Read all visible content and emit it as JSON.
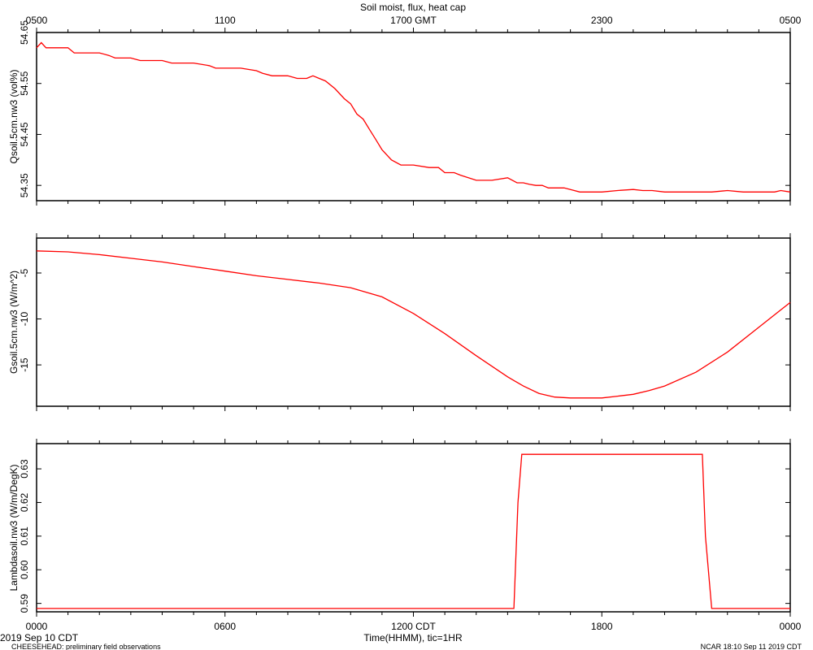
{
  "title": "Soil moist, flux, heat cap",
  "top_axis": {
    "ticks": [
      "0500",
      "1100",
      "1700 GMT",
      "2300",
      "0500"
    ],
    "tick_hours": [
      0,
      6,
      12,
      18,
      24
    ]
  },
  "bottom_axis": {
    "ticks": [
      "0000",
      "0600",
      "1200 CDT",
      "1800",
      "0000"
    ],
    "tick_hours": [
      0,
      6,
      12,
      18,
      24
    ],
    "xlabel": "Time(HHMM), tic=1HR",
    "date_label": "2019 Sep 10 CDT"
  },
  "footer": {
    "left": "CHEESEHEAD: preliminary field observations",
    "right": "NCAR 18:10 Sep 11 2019 CDT"
  },
  "colors": {
    "series": "#ff0000",
    "frame": "#000000"
  },
  "chart_data": [
    {
      "type": "line",
      "ylabel": "Qsoil.5cm.nw3 (vol%)",
      "ylim": [
        54.32,
        54.65
      ],
      "yticks": [
        54.35,
        54.45,
        54.55,
        54.65
      ],
      "ytick_labels": [
        "54.35",
        "54.45",
        "54.55",
        "54.65"
      ],
      "xlim": [
        0,
        24
      ],
      "x": [
        0.0,
        0.15,
        0.3,
        1.0,
        1.2,
        1.4,
        2.0,
        2.3,
        2.5,
        2.8,
        3.0,
        3.3,
        4.0,
        4.3,
        4.5,
        5.0,
        5.5,
        5.7,
        6.0,
        6.5,
        7.0,
        7.2,
        7.5,
        8.0,
        8.3,
        8.6,
        8.8,
        9.0,
        9.2,
        9.5,
        9.8,
        10.0,
        10.2,
        10.4,
        10.6,
        10.8,
        11.0,
        11.3,
        11.6,
        11.8,
        12.0,
        12.5,
        12.8,
        13.0,
        13.3,
        13.5,
        14.0,
        14.2,
        14.5,
        15.0,
        15.3,
        15.5,
        15.7,
        15.9,
        16.1,
        16.3,
        16.5,
        16.8,
        17.0,
        17.3,
        17.5,
        18.0,
        18.5,
        19.0,
        19.3,
        19.6,
        20.0,
        20.3,
        20.5,
        20.8,
        21.0,
        21.5,
        22.0,
        22.5,
        22.7,
        23.0,
        23.5,
        23.7,
        24.0
      ],
      "values": [
        54.62,
        54.63,
        54.62,
        54.62,
        54.61,
        54.61,
        54.61,
        54.605,
        54.6,
        54.6,
        54.6,
        54.595,
        54.595,
        54.59,
        54.59,
        54.59,
        54.585,
        54.58,
        54.58,
        54.58,
        54.575,
        54.57,
        54.565,
        54.565,
        54.56,
        54.56,
        54.565,
        54.56,
        54.555,
        54.54,
        54.52,
        54.51,
        54.49,
        54.48,
        54.46,
        54.44,
        54.42,
        54.4,
        54.39,
        54.39,
        54.39,
        54.385,
        54.385,
        54.375,
        54.375,
        54.37,
        54.36,
        54.36,
        54.36,
        54.365,
        54.355,
        54.355,
        54.352,
        54.35,
        54.35,
        54.345,
        54.345,
        54.345,
        54.342,
        54.337,
        54.337,
        54.337,
        54.34,
        54.342,
        54.34,
        54.34,
        54.337,
        54.337,
        54.337,
        54.337,
        54.337,
        54.337,
        54.34,
        54.337,
        54.337,
        54.337,
        54.337,
        54.34,
        54.337
      ]
    },
    {
      "type": "line",
      "ylabel": "Gsoil.5cm.nw3 (W/m^2)",
      "ylim": [
        -19.5,
        -1.2
      ],
      "yticks": [
        -5,
        -10,
        -15
      ],
      "ytick_labels": [
        "-5",
        "-10",
        "-15"
      ],
      "xlim": [
        0,
        24
      ],
      "x": [
        0,
        1,
        2,
        3,
        4,
        5,
        6,
        7,
        8,
        9,
        10,
        11,
        12,
        13,
        14,
        15,
        15.5,
        16,
        16.5,
        17,
        17.5,
        18,
        18.5,
        19,
        19.5,
        20,
        21,
        22,
        23,
        24
      ],
      "values": [
        -2.6,
        -2.7,
        -3.0,
        -3.4,
        -3.8,
        -4.3,
        -4.8,
        -5.3,
        -5.7,
        -6.1,
        -6.6,
        -7.6,
        -9.4,
        -11.6,
        -14.0,
        -16.3,
        -17.3,
        -18.1,
        -18.5,
        -18.6,
        -18.6,
        -18.6,
        -18.4,
        -18.2,
        -17.8,
        -17.3,
        -15.8,
        -13.6,
        -10.9,
        -8.2
      ]
    },
    {
      "type": "line",
      "ylabel": "Lambdasoil.nw3 (W/m/DegK)",
      "ylim": [
        0.5875,
        0.6375
      ],
      "yticks": [
        0.59,
        0.6,
        0.61,
        0.62,
        0.63
      ],
      "ytick_labels": [
        "0.59",
        "0.60",
        "0.61",
        "0.62",
        "0.63"
      ],
      "xlim": [
        0,
        24
      ],
      "x": [
        0,
        15.2,
        15.33,
        15.45,
        16.0,
        21.2,
        21.3,
        21.5,
        24
      ],
      "values": [
        0.5885,
        0.5885,
        0.62,
        0.6343,
        0.6343,
        0.6343,
        0.61,
        0.5885,
        0.5885
      ]
    }
  ]
}
